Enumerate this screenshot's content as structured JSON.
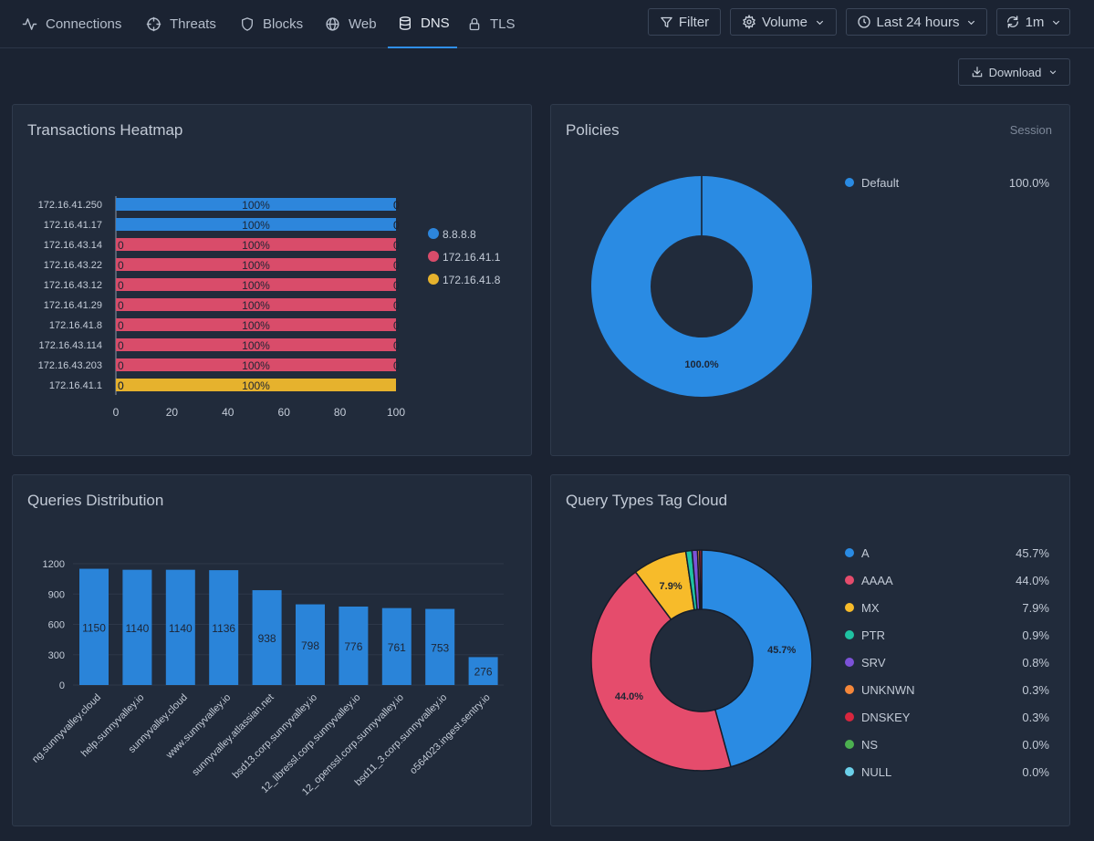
{
  "nav": {
    "tabs": [
      {
        "label": "Connections",
        "icon": "activity-icon"
      },
      {
        "label": "Threats",
        "icon": "crosshair-icon"
      },
      {
        "label": "Blocks",
        "icon": "shield-icon"
      },
      {
        "label": "Web",
        "icon": "globe-icon"
      },
      {
        "label": "DNS",
        "icon": "database-icon"
      },
      {
        "label": "TLS",
        "icon": "lock-icon"
      }
    ],
    "active": "DNS"
  },
  "controls": {
    "filter": "Filter",
    "volume": "Volume",
    "time_range": "Last 24 hours",
    "refresh": "1m",
    "download": "Download"
  },
  "heatmap": {
    "title": "Transactions Heatmap",
    "chart_data": {
      "type": "bar",
      "orientation": "horizontal",
      "stacked": true,
      "categories": [
        "172.16.41.250",
        "172.16.41.17",
        "172.16.43.14",
        "172.16.43.22",
        "172.16.43.12",
        "172.16.41.29",
        "172.16.41.8",
        "172.16.43.114",
        "172.16.43.203",
        "172.16.41.1"
      ],
      "series": [
        {
          "name": "8.8.8.8",
          "color": "#2d86dc",
          "values": [
            100,
            100,
            0,
            0,
            0,
            0,
            0,
            0,
            0,
            0
          ]
        },
        {
          "name": "172.16.41.1",
          "color": "#d94c6a",
          "values": [
            0,
            0,
            100,
            100,
            100,
            100,
            100,
            100,
            100,
            0
          ]
        },
        {
          "name": "172.16.41.8",
          "color": "#e6b22d",
          "values": [
            0,
            0,
            0,
            0,
            0,
            0,
            0,
            0,
            0,
            100
          ]
        }
      ],
      "xticks": [
        0,
        20,
        40,
        60,
        80,
        100
      ],
      "xlim": [
        0,
        100
      ],
      "legend_position": "right"
    }
  },
  "policies": {
    "title": "Policies",
    "subtitle": "Session",
    "chart_data": {
      "type": "pie",
      "donut": true,
      "slices": [
        {
          "label": "Default",
          "value": 100.0,
          "display": "100.0%",
          "color": "#2a8be3"
        }
      ],
      "legend_position": "top-right"
    }
  },
  "queries": {
    "title": "Queries Distribution",
    "chart_data": {
      "type": "bar",
      "categories": [
        "ng.sunnyvalley.cloud",
        "help.sunnyvalley.io",
        "sunnyvalley.cloud",
        "www.sunnyvalley.io",
        "sunnyvalley.atlassian.net",
        "bsd13.corp.sunnyvalley.io",
        "12_libressl.corp.sunnyvalley.io",
        "12_openssl.corp.sunnyvalley.io",
        "bsd11_3.corp.sunnyvalley.io",
        "o564023.ingest.sentry.io"
      ],
      "values": [
        1150,
        1140,
        1140,
        1136,
        938,
        798,
        776,
        761,
        753,
        276
      ],
      "yticks": [
        0,
        300,
        600,
        900,
        1200
      ],
      "ylim": [
        0,
        1200
      ],
      "color": "#2a84d9",
      "grid": true
    }
  },
  "query_types": {
    "title": "Query Types Tag Cloud",
    "chart_data": {
      "type": "pie",
      "donut": true,
      "slices": [
        {
          "label": "A",
          "value": 45.7,
          "display": "45.7%",
          "color": "#2a8be3"
        },
        {
          "label": "AAAA",
          "value": 44.0,
          "display": "44.0%",
          "color": "#e54c6c"
        },
        {
          "label": "MX",
          "value": 7.9,
          "display": "7.9%",
          "color": "#f7bb2a"
        },
        {
          "label": "PTR",
          "value": 0.9,
          "display": "0.9%",
          "color": "#1fc2a2"
        },
        {
          "label": "SRV",
          "value": 0.8,
          "display": "0.8%",
          "color": "#7c52d8"
        },
        {
          "label": "UNKNWN",
          "value": 0.3,
          "display": "0.3%",
          "color": "#f5873a"
        },
        {
          "label": "DNSKEY",
          "value": 0.3,
          "display": "0.3%",
          "color": "#d8263e"
        },
        {
          "label": "NS",
          "value": 0.0,
          "display": "0.0%",
          "color": "#4cb050"
        },
        {
          "label": "NULL",
          "value": 0.0,
          "display": "0.0%",
          "color": "#6bd0ea"
        }
      ],
      "legend_position": "right"
    }
  }
}
